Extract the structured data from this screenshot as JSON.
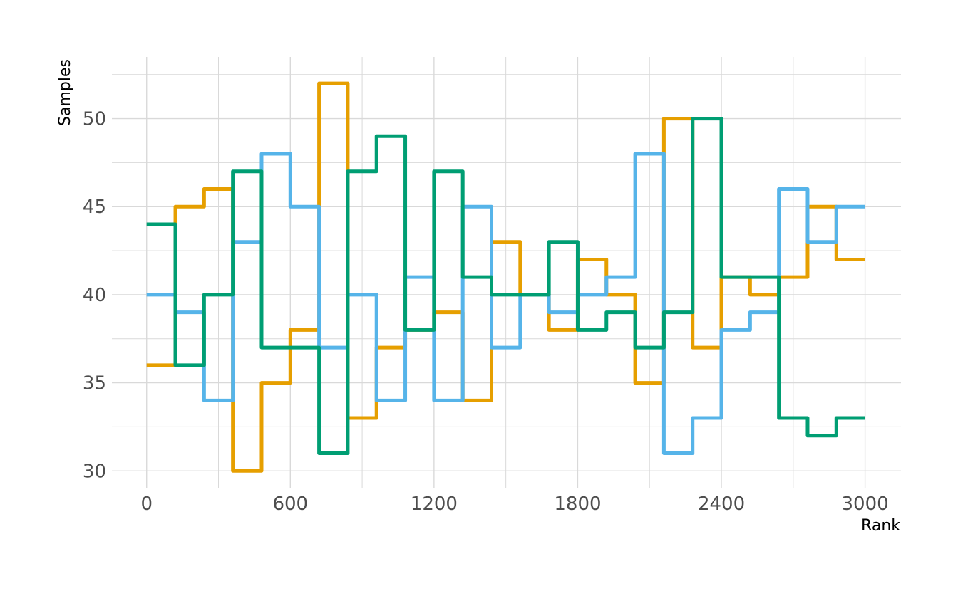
{
  "chart_data": {
    "type": "line",
    "step": true,
    "xlabel": "Rank",
    "ylabel": "Samples",
    "xlim": [
      -145,
      3150
    ],
    "ylim": [
      29,
      53.5
    ],
    "xticks": [
      0,
      600,
      1200,
      1800,
      2400,
      3000
    ],
    "xticks_minor": [
      300,
      900,
      1500,
      2100,
      2700
    ],
    "yticks": [
      30,
      35,
      40,
      45,
      50
    ],
    "yticks_minor": [
      32.5,
      37.5,
      42.5,
      47.5,
      52.5
    ],
    "grid": true,
    "x": [
      0,
      120,
      240,
      360,
      480,
      600,
      720,
      840,
      960,
      1080,
      1200,
      1320,
      1440,
      1560,
      1680,
      1800,
      1920,
      2040,
      2160,
      2280,
      2400,
      2520,
      2640,
      2760,
      2880,
      3000
    ],
    "series": [
      {
        "color": "#E69F00",
        "values": [
          36,
          45,
          46,
          30,
          35,
          38,
          52,
          33,
          37,
          38,
          39,
          34,
          43,
          40,
          38,
          42,
          40,
          35,
          50,
          37,
          41,
          40,
          41,
          45,
          42,
          42
        ]
      },
      {
        "color": "#56B4E9",
        "values": [
          40,
          39,
          34,
          43,
          48,
          45,
          37,
          40,
          34,
          41,
          34,
          45,
          37,
          40,
          39,
          40,
          41,
          48,
          31,
          33,
          38,
          39,
          46,
          43,
          45,
          45
        ]
      },
      {
        "color": "#009E73",
        "values": [
          44,
          36,
          40,
          47,
          37,
          37,
          31,
          47,
          49,
          38,
          47,
          41,
          40,
          40,
          43,
          38,
          39,
          37,
          39,
          50,
          41,
          41,
          33,
          32,
          33,
          33
        ]
      }
    ]
  }
}
